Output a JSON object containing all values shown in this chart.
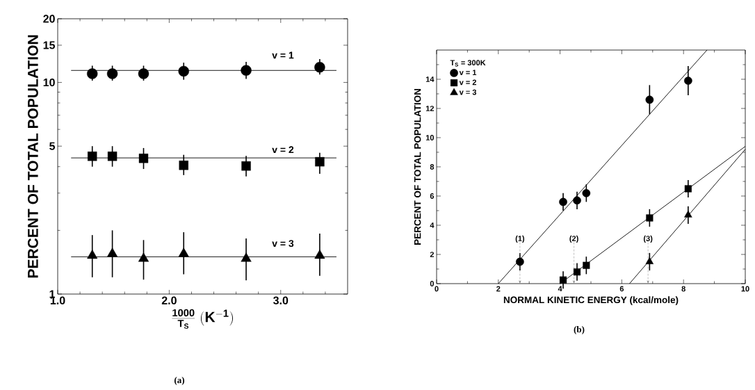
{
  "chart_data": [
    {
      "type": "scatter",
      "log": "y",
      "legend": false,
      "xlabel": "\\frac{\\mathbf{1000}}{\\mathbf{T_{S}}}\\ (\\mathbf{K^{-1}})",
      "ylabel": "PERCENT OF TOTAL POPULATION",
      "annotations": [
        "(a)"
      ],
      "xlim": [
        1.0,
        3.6
      ],
      "ylim": [
        1,
        20
      ],
      "xticks": [
        {
          "value": 1.0,
          "label": "1.0"
        },
        {
          "value": 1.2,
          "label": null
        },
        {
          "value": 1.4,
          "label": null
        },
        {
          "value": 1.6,
          "label": null
        },
        {
          "value": 1.8,
          "label": null
        },
        {
          "value": 2.0,
          "label": "2.0"
        },
        {
          "value": 2.2,
          "label": null
        },
        {
          "value": 2.4,
          "label": null
        },
        {
          "value": 2.6,
          "label": null
        },
        {
          "value": 2.8,
          "label": null
        },
        {
          "value": 3.0,
          "label": "3.0"
        },
        {
          "value": 3.2,
          "label": null
        },
        {
          "value": 3.4,
          "label": null
        }
      ],
      "yticks": [
        1,
        {
          "value": 2,
          "label": null
        },
        {
          "value": 3,
          "label": null
        },
        {
          "value": 4,
          "label": null
        },
        5,
        {
          "value": 6,
          "label": null
        },
        {
          "value": 7,
          "label": null
        },
        {
          "value": 8,
          "label": null
        },
        {
          "value": 9,
          "label": null
        },
        10,
        15,
        20
      ],
      "series": [
        {
          "name": "v = 1",
          "marker": "circle",
          "color": "#000000",
          "x": [
            1.31,
            1.49,
            1.77,
            2.13,
            2.69,
            3.35
          ],
          "values": [
            11.0,
            11.0,
            11.0,
            11.3,
            11.4,
            11.8
          ],
          "errors": [
            [
              10.2,
              12.0
            ],
            [
              10.2,
              12.0
            ],
            [
              10.2,
              12.0
            ],
            [
              10.3,
              12.4
            ],
            [
              10.4,
              12.5
            ],
            [
              10.9,
              12.9
            ]
          ]
        },
        {
          "type": "line",
          "color": "#000000",
          "x": [
            1.12,
            3.5
          ],
          "values": [
            11.4,
            11.4
          ]
        },
        {
          "name": "v = 2",
          "marker": "square",
          "color": "#000000",
          "x": [
            1.31,
            1.49,
            1.77,
            2.13,
            2.69,
            3.35
          ],
          "values": [
            4.48,
            4.48,
            4.38,
            4.06,
            4.03,
            4.22
          ],
          "errors": [
            [
              4.0,
              5.0
            ],
            [
              4.0,
              5.0
            ],
            [
              3.9,
              4.9
            ],
            [
              3.65,
              4.55
            ],
            [
              3.6,
              4.5
            ],
            [
              3.7,
              4.65
            ]
          ]
        },
        {
          "type": "line",
          "color": "#000000",
          "x": [
            1.12,
            3.5
          ],
          "values": [
            4.4,
            4.4
          ]
        },
        {
          "name": "v = 3",
          "marker": "triangle",
          "color": "#000000",
          "x": [
            1.31,
            1.49,
            1.77,
            2.13,
            2.69,
            3.35
          ],
          "values": [
            1.52,
            1.55,
            1.47,
            1.55,
            1.47,
            1.52
          ],
          "errors": [
            [
              1.2,
              1.9
            ],
            [
              1.2,
              2.0
            ],
            [
              1.17,
              1.8
            ],
            [
              1.24,
              1.96
            ],
            [
              1.16,
              1.83
            ],
            [
              1.22,
              1.93
            ]
          ]
        },
        {
          "type": "line",
          "color": "#000000",
          "x": [
            1.12,
            3.5
          ],
          "values": [
            1.5,
            1.5
          ]
        }
      ]
    },
    {
      "type": "scatter",
      "legend": "top left",
      "legend_title": "T$_{S}$ = 300K",
      "xlabel": "NORMAL KINETIC ENERGY (kcal/mole)",
      "ylabel": "PERCENT OF TOTAL POPULATION",
      "annotations": [
        "(b)",
        "(1)",
        "(2)",
        "(3)"
      ],
      "xlim": [
        0,
        10
      ],
      "ylim": [
        0,
        16
      ],
      "xticks": [
        0,
        {
          "value": 1,
          "label": null
        },
        2,
        {
          "value": 3,
          "label": null
        },
        4,
        {
          "value": 5,
          "label": null
        },
        6,
        {
          "value": 7,
          "label": null
        },
        8,
        {
          "value": 9,
          "label": null
        },
        10
      ],
      "yticks": [
        0,
        {
          "value": 1,
          "label": null
        },
        2,
        {
          "value": 3,
          "label": null
        },
        4,
        {
          "value": 5,
          "label": null
        },
        6,
        {
          "value": 7,
          "label": null
        },
        8,
        {
          "value": 9,
          "label": null
        },
        10,
        {
          "value": 11,
          "label": null
        },
        12,
        {
          "value": 13,
          "label": null
        },
        14,
        {
          "value": 15,
          "label": null
        }
      ],
      "series": [
        {
          "name": "v = 1",
          "marker": "circle",
          "color": "#000000",
          "x": [
            2.7,
            4.1,
            4.55,
            4.85,
            6.9,
            8.15
          ],
          "values": [
            1.5,
            5.6,
            5.7,
            6.2,
            12.6,
            13.9
          ],
          "errors": [
            0.6,
            0.6,
            0.6,
            0.6,
            1.0,
            1.0
          ]
        },
        {
          "type": "line",
          "color": "#000000",
          "x": [
            2.0,
            8.76
          ],
          "values": [
            0,
            16
          ]
        },
        {
          "name": "v = 2",
          "marker": "square",
          "color": "#000000",
          "x": [
            4.1,
            4.55,
            4.85,
            6.9,
            8.15
          ],
          "values": [
            0.25,
            0.8,
            1.25,
            4.5,
            6.5
          ],
          "errors": [
            0.6,
            0.6,
            0.6,
            0.6,
            0.6
          ]
        },
        {
          "type": "line",
          "color": "#000000",
          "x": [
            4.0,
            10
          ],
          "values": [
            0,
            9.4
          ]
        },
        {
          "name": "v = 3",
          "marker": "triangle",
          "color": "#000000",
          "x": [
            6.9,
            8.15
          ],
          "values": [
            1.5,
            4.7
          ],
          "errors": [
            0.6,
            0.6
          ]
        },
        {
          "type": "line",
          "color": "#000000",
          "x": [
            6.25,
            10
          ],
          "values": [
            0,
            9.2
          ]
        }
      ]
    }
  ]
}
